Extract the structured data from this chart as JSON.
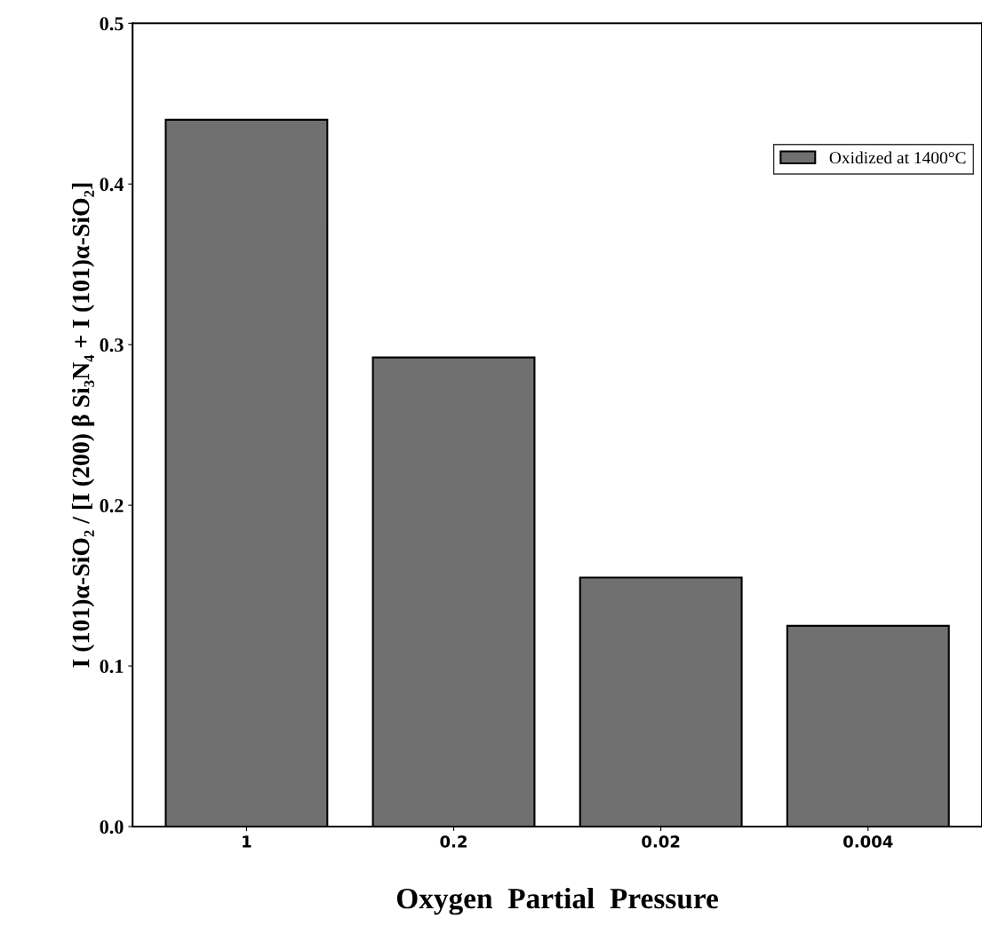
{
  "chart_data": {
    "type": "bar",
    "xlabel": "Oxygen  Partial  Pressure",
    "ylabel": "I (101)α-SiO₂ / [I (200) β Si₃N₄ + I (101)α-SiO₂]",
    "categories": [
      "1",
      "0.2",
      "0.02",
      "0.004"
    ],
    "series": [
      {
        "name": "Oxidized at 1400°C",
        "color": "#707070",
        "values": [
          0.44,
          0.292,
          0.155,
          0.125
        ]
      }
    ],
    "ylim": [
      0,
      0.5
    ],
    "yticks": [
      {
        "value": 0,
        "label": "0.0"
      },
      0.1,
      0.2,
      0.3,
      0.4,
      0.5
    ],
    "legend": "top right",
    "grid": false
  }
}
